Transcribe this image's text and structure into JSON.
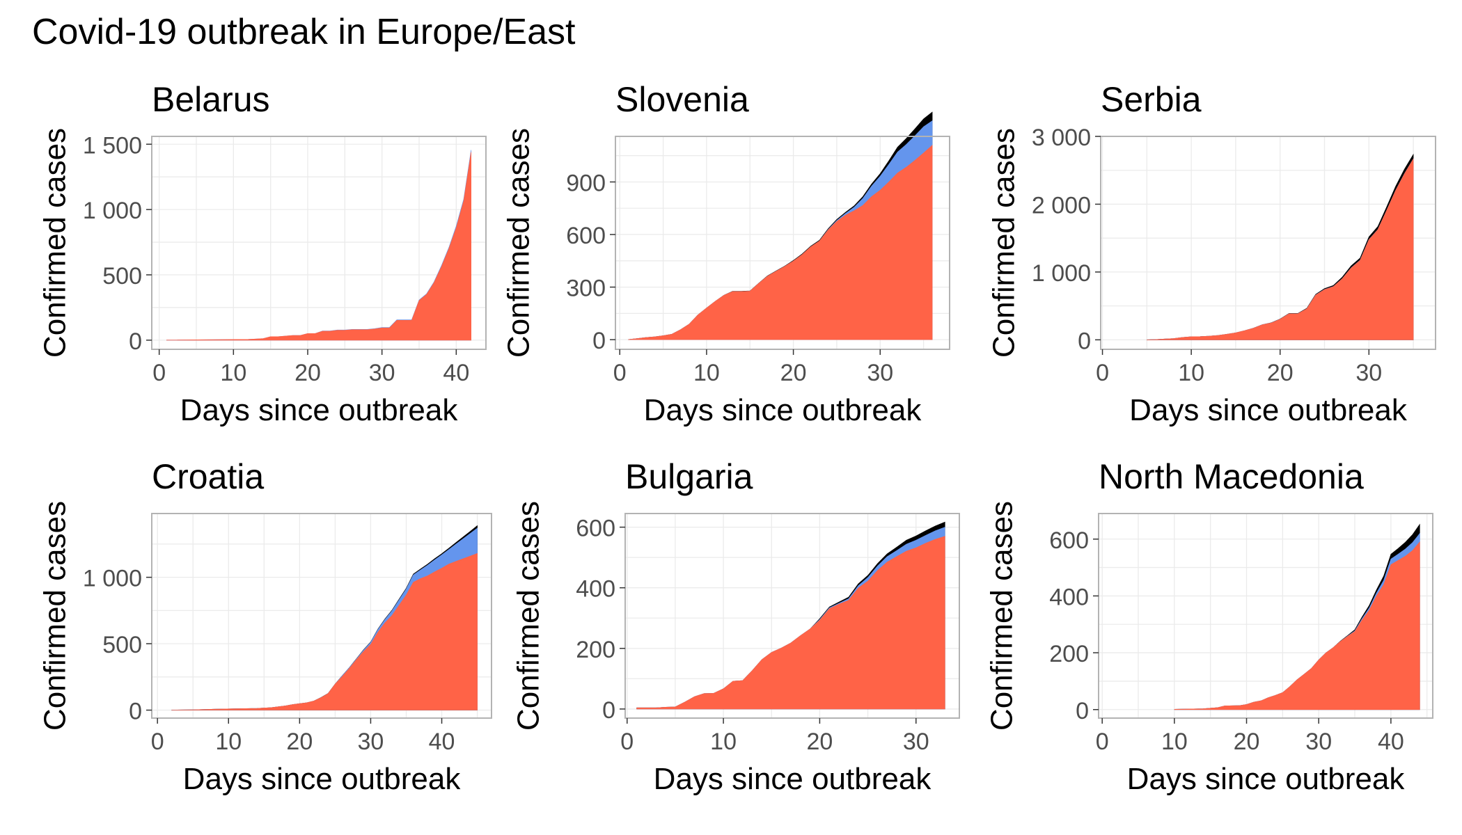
{
  "title": "Covid-19 outbreak in Europe/East",
  "colors": {
    "confirmed": "#FF6347",
    "recovered": "#6495ED",
    "deaths": "#000000"
  },
  "chart_data": [
    {
      "type": "area",
      "title": "Belarus",
      "xlabel": "Days since outbreak",
      "ylabel": "Confirmed cases",
      "xlim": [
        -1,
        44
      ],
      "ylim": [
        -70,
        1560
      ],
      "xticks": [
        0,
        10,
        20,
        30,
        40
      ],
      "yticks": [
        0,
        500,
        1000,
        1500
      ],
      "ytick_labels": [
        "0",
        "500",
        "1 000",
        "1 500"
      ],
      "grid": true,
      "x": [
        1,
        12,
        13,
        14,
        15,
        16,
        18,
        19,
        20,
        21,
        22,
        23,
        24,
        25,
        26,
        27,
        28,
        29,
        30,
        31,
        32,
        33,
        34,
        35,
        36,
        37,
        38,
        39,
        40,
        41,
        42
      ],
      "series": [
        {
          "values": [
            1,
            6,
            9,
            12,
            27,
            27,
            36,
            36,
            51,
            51,
            69,
            69,
            76,
            76,
            81,
            81,
            81,
            86,
            94,
            94,
            152,
            152,
            152,
            304,
            351,
            440,
            562,
            700,
            861,
            1066,
            1440
          ]
        },
        {
          "values": [
            0,
            0,
            0,
            0,
            0,
            0,
            0,
            0,
            0,
            0,
            2,
            2,
            2,
            2,
            2,
            2,
            2,
            2,
            3,
            3,
            4,
            4,
            4,
            4,
            4,
            5,
            8,
            9,
            13,
            13,
            16
          ]
        }
      ]
    },
    {
      "type": "area",
      "title": "Slovenia",
      "xlabel": "Days since outbreak",
      "ylabel": "Confirmed cases",
      "xlim": [
        -0.5,
        38
      ],
      "ylim": [
        -55,
        1160
      ],
      "xticks": [
        0,
        10,
        20,
        30
      ],
      "yticks": [
        0,
        300,
        600,
        900
      ],
      "ytick_labels": [
        "0",
        "300",
        "600",
        "900"
      ],
      "grid": true,
      "x": [
        1,
        2,
        3,
        4,
        5,
        6,
        7,
        8,
        9,
        10,
        11,
        12,
        13,
        14,
        15,
        16,
        17,
        18,
        19,
        20,
        21,
        22,
        23,
        24,
        25,
        26,
        27,
        28,
        29,
        30,
        31,
        32,
        33,
        34,
        35,
        36
      ],
      "series": [
        {
          "values": [
            1,
            6,
            12,
            16,
            23,
            31,
            57,
            89,
            141,
            181,
            219,
            253,
            275,
            275,
            277,
            321,
            362,
            390,
            418,
            449,
            485,
            530,
            563,
            626,
            675,
            710,
            736,
            766,
            816,
            853,
            900,
            951,
            984,
            1023,
            1065,
            1109
          ]
        },
        {
          "values": [
            0,
            0,
            0,
            0,
            0,
            0,
            0,
            0,
            0,
            0,
            0,
            0,
            0,
            0,
            0,
            0,
            0,
            0,
            0,
            0,
            0,
            0,
            0,
            2,
            5,
            10,
            20,
            40,
            60,
            80,
            100,
            120,
            130,
            140,
            150,
            140
          ]
        },
        {
          "values": [
            0,
            0,
            0,
            0,
            0,
            0,
            0,
            0,
            0,
            0,
            0,
            1,
            1,
            1,
            1,
            1,
            2,
            2,
            2,
            3,
            4,
            4,
            4,
            5,
            6,
            7,
            8,
            10,
            12,
            15,
            21,
            28,
            34,
            40,
            45,
            50
          ]
        }
      ]
    },
    {
      "type": "area",
      "title": "Serbia",
      "xlabel": "Days since outbreak",
      "ylabel": "Confirmed cases",
      "xlim": [
        -0.2,
        37.5
      ],
      "ylim": [
        -140,
        3000
      ],
      "xticks": [
        0,
        10,
        20,
        30
      ],
      "yticks": [
        0,
        1000,
        2000,
        3000
      ],
      "ytick_labels": [
        "0",
        "1 000",
        "2 000",
        "3 000"
      ],
      "grid": true,
      "x": [
        5,
        6,
        7,
        8,
        9,
        10,
        11,
        12,
        13,
        14,
        15,
        16,
        17,
        18,
        19,
        20,
        21,
        22,
        23,
        24,
        25,
        26,
        27,
        28,
        29,
        30,
        31,
        32,
        33,
        34,
        35
      ],
      "series": [
        {
          "values": [
            1,
            5,
            12,
            19,
            35,
            46,
            48,
            55,
            65,
            83,
            103,
            135,
            171,
            222,
            249,
            303,
            384,
            384,
            457,
            659,
            741,
            785,
            900,
            1060,
            1171,
            1476,
            1624,
            1908,
            2200,
            2447,
            2666
          ]
        },
        {
          "values": [
            0,
            0,
            0,
            0,
            0,
            0,
            0,
            0,
            0,
            0,
            0,
            0,
            1,
            1,
            1,
            1,
            1,
            1,
            1,
            2,
            2,
            2,
            2,
            3,
            3,
            3,
            3,
            3,
            4,
            4,
            4
          ]
        },
        {
          "values": [
            0,
            0,
            0,
            0,
            0,
            0,
            0,
            0,
            0,
            0,
            0,
            0,
            1,
            1,
            2,
            3,
            4,
            5,
            7,
            10,
            13,
            16,
            23,
            28,
            31,
            39,
            44,
            51,
            58,
            65,
            65
          ]
        }
      ]
    },
    {
      "type": "area",
      "title": "Croatia",
      "xlabel": "Days since outbreak",
      "ylabel": "Confirmed cases",
      "xlim": [
        -0.8,
        47
      ],
      "ylim": [
        -60,
        1480
      ],
      "xticks": [
        0,
        10,
        20,
        30,
        40
      ],
      "yticks": [
        0,
        500,
        1000
      ],
      "ytick_labels": [
        "0",
        "500",
        "1 000"
      ],
      "grid": true,
      "x": [
        2,
        5,
        8,
        11,
        14,
        16,
        18,
        19,
        20,
        21,
        22,
        23,
        24,
        25,
        26,
        27,
        28,
        29,
        30,
        31,
        32,
        33,
        34,
        35,
        36,
        37,
        38,
        39,
        40,
        41,
        42,
        43,
        44,
        45
      ],
      "series": [
        {
          "values": [
            1,
            3,
            7,
            10,
            13,
            19,
            32,
            42,
            49,
            56,
            69,
            94,
            125,
            196,
            254,
            315,
            381,
            442,
            495,
            586,
            657,
            713,
            790,
            867,
            963,
            990,
            1011,
            1041,
            1069,
            1099,
            1120,
            1140,
            1160,
            1180
          ]
        },
        {
          "values": [
            0,
            0,
            0,
            0,
            0,
            0,
            0,
            0,
            0,
            0,
            0,
            0,
            0,
            0,
            5,
            5,
            5,
            10,
            15,
            20,
            25,
            35,
            40,
            45,
            55,
            65,
            80,
            90,
            100,
            110,
            130,
            150,
            170,
            190
          ]
        },
        {
          "values": [
            0,
            0,
            0,
            0,
            0,
            0,
            0,
            0,
            0,
            0,
            0,
            1,
            1,
            1,
            1,
            1,
            2,
            3,
            3,
            4,
            5,
            5,
            6,
            6,
            7,
            7,
            8,
            9,
            9,
            10,
            12,
            14,
            16,
            19
          ]
        }
      ]
    },
    {
      "type": "area",
      "title": "Bulgaria",
      "xlabel": "Days since outbreak",
      "ylabel": "Confirmed cases",
      "xlim": [
        -0.2,
        34.5
      ],
      "ylim": [
        -30,
        645
      ],
      "xticks": [
        0,
        10,
        20,
        30
      ],
      "yticks": [
        0,
        200,
        400,
        600
      ],
      "ytick_labels": [
        "0",
        "200",
        "400",
        "600"
      ],
      "grid": true,
      "x": [
        1,
        2,
        3,
        4,
        5,
        6,
        7,
        8,
        9,
        10,
        11,
        12,
        13,
        14,
        15,
        16,
        17,
        18,
        19,
        20,
        21,
        22,
        23,
        24,
        25,
        26,
        27,
        28,
        29,
        30,
        31,
        32,
        33
      ],
      "series": [
        {
          "values": [
            4,
            4,
            4,
            6,
            7,
            23,
            41,
            51,
            52,
            67,
            92,
            94,
            127,
            163,
            187,
            201,
            218,
            242,
            264,
            293,
            331,
            346,
            359,
            399,
            422,
            457,
            485,
            503,
            521,
            532,
            547,
            560,
            570
          ]
        },
        {
          "values": [
            0,
            0,
            0,
            0,
            0,
            0,
            0,
            0,
            0,
            0,
            0,
            0,
            0,
            0,
            0,
            0,
            0,
            0,
            0,
            2,
            3,
            3,
            5,
            8,
            12,
            15,
            18,
            20,
            23,
            25,
            26,
            28,
            30
          ]
        },
        {
          "values": [
            0,
            0,
            0,
            0,
            0,
            0,
            0,
            0,
            0,
            0,
            0,
            0,
            0,
            0,
            0,
            0,
            0,
            0,
            0,
            3,
            3,
            4,
            5,
            6,
            7,
            8,
            9,
            11,
            13,
            14,
            15,
            16,
            17
          ]
        }
      ]
    },
    {
      "type": "area",
      "title": "North Macedonia",
      "xlabel": "Days since outbreak",
      "ylabel": "Confirmed cases",
      "xlim": [
        -0.5,
        45.8
      ],
      "ylim": [
        -30,
        690
      ],
      "xticks": [
        0,
        10,
        20,
        30,
        40
      ],
      "yticks": [
        0,
        200,
        400,
        600
      ],
      "ytick_labels": [
        "0",
        "200",
        "400",
        "600"
      ],
      "grid": true,
      "x": [
        10,
        14,
        16,
        17,
        19,
        20,
        21,
        22,
        23,
        24,
        25,
        26,
        27,
        28,
        29,
        30,
        31,
        32,
        33,
        34,
        35,
        36,
        37,
        38,
        39,
        40,
        41,
        42,
        43,
        44
      ],
      "series": [
        {
          "values": [
            1,
            3,
            7,
            13,
            14,
            18,
            26,
            31,
            42,
            50,
            60,
            81,
            105,
            125,
            145,
            175,
            200,
            218,
            240,
            258,
            275,
            315,
            350,
            400,
            440,
            510,
            525,
            540,
            560,
            590
          ]
        },
        {
          "values": [
            0,
            0,
            0,
            0,
            0,
            0,
            0,
            0,
            0,
            0,
            0,
            0,
            0,
            0,
            0,
            0,
            0,
            0,
            0,
            1,
            2,
            5,
            8,
            10,
            15,
            20,
            22,
            25,
            28,
            30
          ]
        },
        {
          "values": [
            0,
            0,
            0,
            0,
            0,
            0,
            0,
            0,
            0,
            0,
            0,
            0,
            0,
            0,
            0,
            0,
            0,
            0,
            1,
            2,
            4,
            6,
            9,
            11,
            15,
            17,
            20,
            24,
            28,
            32
          ]
        }
      ]
    }
  ]
}
